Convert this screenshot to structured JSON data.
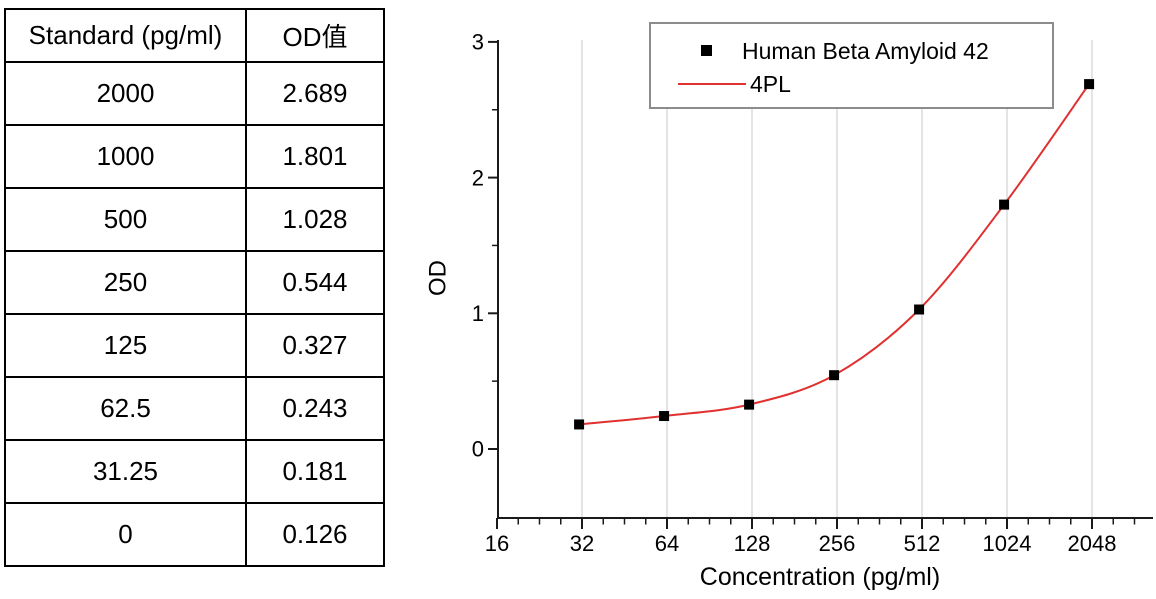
{
  "table": {
    "headers": [
      "Standard (pg/ml)",
      "OD值"
    ],
    "rows": [
      [
        "2000",
        "2.689"
      ],
      [
        "1000",
        "1.801"
      ],
      [
        "500",
        "1.028"
      ],
      [
        "250",
        "0.544"
      ],
      [
        "125",
        "0.327"
      ],
      [
        "62.5",
        "0.243"
      ],
      [
        "31.25",
        "0.181"
      ],
      [
        "0",
        "0.126"
      ]
    ]
  },
  "chart_data": {
    "type": "scatter",
    "title": "",
    "xlabel": "Concentration (pg/ml)",
    "ylabel": "OD",
    "x_scale": "log2",
    "x_ticks": [
      16,
      32,
      64,
      128,
      256,
      512,
      1024,
      2048
    ],
    "y_ticks": [
      0,
      1,
      2,
      3
    ],
    "y_minor_ticks": [
      0.5,
      1.5,
      2.5
    ],
    "ylim": [
      -0.5,
      3
    ],
    "grid": "vertical-major",
    "legend_position": "top-center",
    "series": [
      {
        "name": "Human Beta Amyloid 42",
        "type": "scatter",
        "marker": "square",
        "color": "#000000",
        "x": [
          31.25,
          62.5,
          125,
          250,
          500,
          1000,
          2000
        ],
        "y": [
          0.181,
          0.243,
          0.327,
          0.544,
          1.028,
          1.801,
          2.689
        ]
      },
      {
        "name": "4PL",
        "type": "line",
        "color": "#e03030",
        "fit_of": "Human Beta Amyloid 42"
      }
    ],
    "colors": {
      "axis": "#1a1a1a",
      "grid": "#dcdcdc",
      "fit_line": "#e03030",
      "marker": "#000000",
      "legend_border": "#8c8c8c"
    }
  }
}
